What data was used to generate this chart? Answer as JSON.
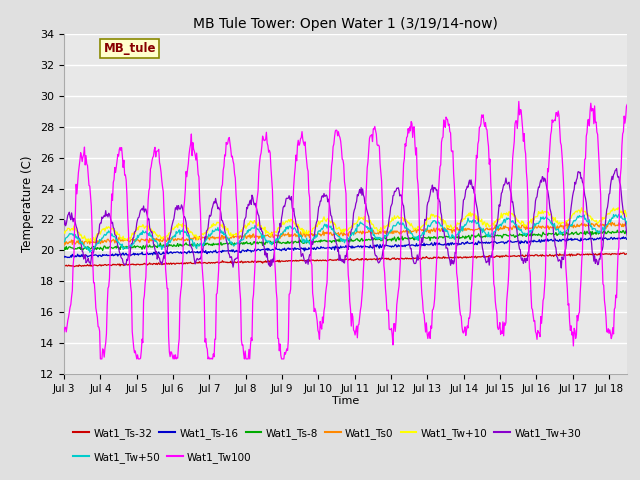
{
  "title": "MB Tule Tower: Open Water 1 (3/19/14-now)",
  "xlabel": "Time",
  "ylabel": "Temperature (C)",
  "xlim_days": [
    0,
    15.5
  ],
  "ylim": [
    12,
    34
  ],
  "yticks": [
    12,
    14,
    16,
    18,
    20,
    22,
    24,
    26,
    28,
    30,
    32,
    34
  ],
  "xtick_labels": [
    "Jul 3",
    "Jul 4",
    "Jul 5",
    "Jul 6",
    "Jul 7",
    "Jul 8",
    "Jul 9",
    "Jul 10",
    "Jul 11",
    "Jul 12",
    "Jul 13",
    "Jul 14",
    "Jul 15",
    "Jul 16",
    "Jul 17",
    "Jul 18"
  ],
  "background_color": "#e0e0e0",
  "plot_bg_color": "#e8e8e8",
  "grid_color": "#ffffff",
  "series_colors": {
    "Wat1_Ts-32": "#cc0000",
    "Wat1_Ts-16": "#0000cc",
    "Wat1_Ts-8": "#00aa00",
    "Wat1_Ts0": "#ff8800",
    "Wat1_Tw+10": "#ffff00",
    "Wat1_Tw+30": "#8800cc",
    "Wat1_Tw+50": "#00cccc",
    "Wat1_Tw100": "#ff00ff"
  },
  "legend_label": "MB_tule",
  "legend_text_color": "#880000",
  "legend_box_color": "#ffffcc",
  "legend_box_edge": "#888800"
}
